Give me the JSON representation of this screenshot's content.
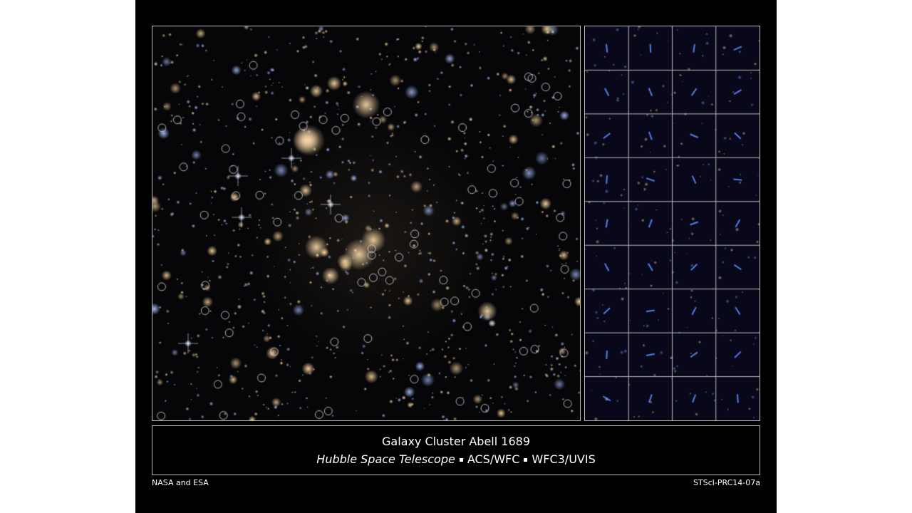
{
  "caption": {
    "title": "Galaxy Cluster Abell 1689",
    "telescope": "Hubble Space Telescope",
    "instrument_1": "ACS/WFC",
    "instrument_2": "WFC3/UVIS"
  },
  "credits": {
    "left": "NASA and ESA",
    "right": "STScI-PRC14-07a"
  },
  "thumbnail_grid": {
    "columns": 4,
    "rows": 9
  },
  "colors": {
    "background": "#000000",
    "frame": "#bbbbbb",
    "text": "#ffffff"
  }
}
